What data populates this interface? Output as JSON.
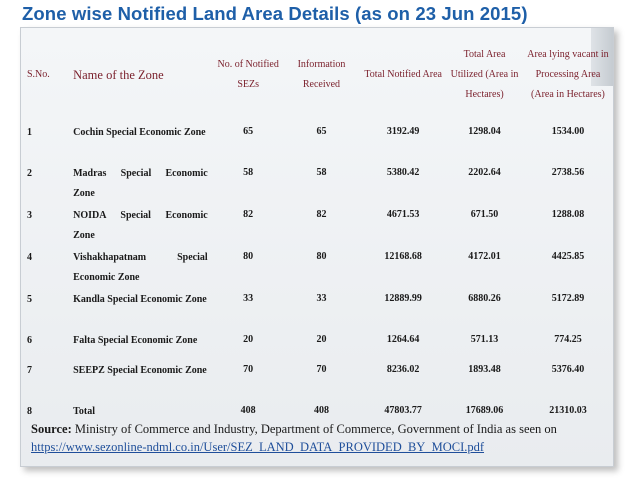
{
  "title": "Zone wise Notified Land Area Details (as on 23 Jun 2015)",
  "table": {
    "headers": {
      "sno": "S.No.",
      "name": "Name of the Zone",
      "sezs": "No. of Notified SEZs",
      "info": "Information Received",
      "total": "Total Notified Area",
      "utilized": "Total Area Utilized (Area in Hectares)",
      "vacant": "Area lying vacant in Processing Area (Area in Hectares)"
    },
    "rows": [
      {
        "sno": "1",
        "name": "Cochin Special Economic Zone",
        "sezs": "65",
        "info": "65",
        "total": "3192.49",
        "utilized": "1298.04",
        "vacant": "1534.00"
      },
      {
        "sno": "2",
        "name": "Madras Special Economic Zone",
        "sezs": "58",
        "info": "58",
        "total": "5380.42",
        "utilized": "2202.64",
        "vacant": "2738.56"
      },
      {
        "sno": "3",
        "name": "NOIDA Special Economic Zone",
        "sezs": "82",
        "info": "82",
        "total": "4671.53",
        "utilized": "671.50",
        "vacant": "1288.08"
      },
      {
        "sno": "4",
        "name": "Vishakhapatnam Special Economic Zone",
        "sezs": "80",
        "info": "80",
        "total": "12168.68",
        "utilized": "4172.01",
        "vacant": "4425.85"
      },
      {
        "sno": "5",
        "name": "Kandla Special Economic Zone",
        "sezs": "33",
        "info": "33",
        "total": "12889.99",
        "utilized": "6880.26",
        "vacant": "5172.89"
      },
      {
        "sno": "6",
        "name": "Falta Special Economic Zone",
        "sezs": "20",
        "info": "20",
        "total": "1264.64",
        "utilized": "571.13",
        "vacant": "774.25"
      },
      {
        "sno": "7",
        "name": "SEEPZ Special Economic Zone",
        "sezs": "70",
        "info": "70",
        "total": "8236.02",
        "utilized": "1893.48",
        "vacant": "5376.40"
      },
      {
        "sno": "8",
        "name": "Total",
        "sezs": "408",
        "info": "408",
        "total": "47803.77",
        "utilized": "17689.06",
        "vacant": "21310.03"
      }
    ]
  },
  "source": {
    "label": "Source:",
    "text": "Ministry of Commerce and Industry, Department of Commerce, Government of India as seen on",
    "link": "https://www.sezonline-ndml.co.in/User/SEZ_LAND_DATA_PROVIDED_BY_MOCI.pdf"
  },
  "colors": {
    "title": "#1e5fa8",
    "header_text": "#7a1f2b",
    "link": "#1f4e9a"
  }
}
